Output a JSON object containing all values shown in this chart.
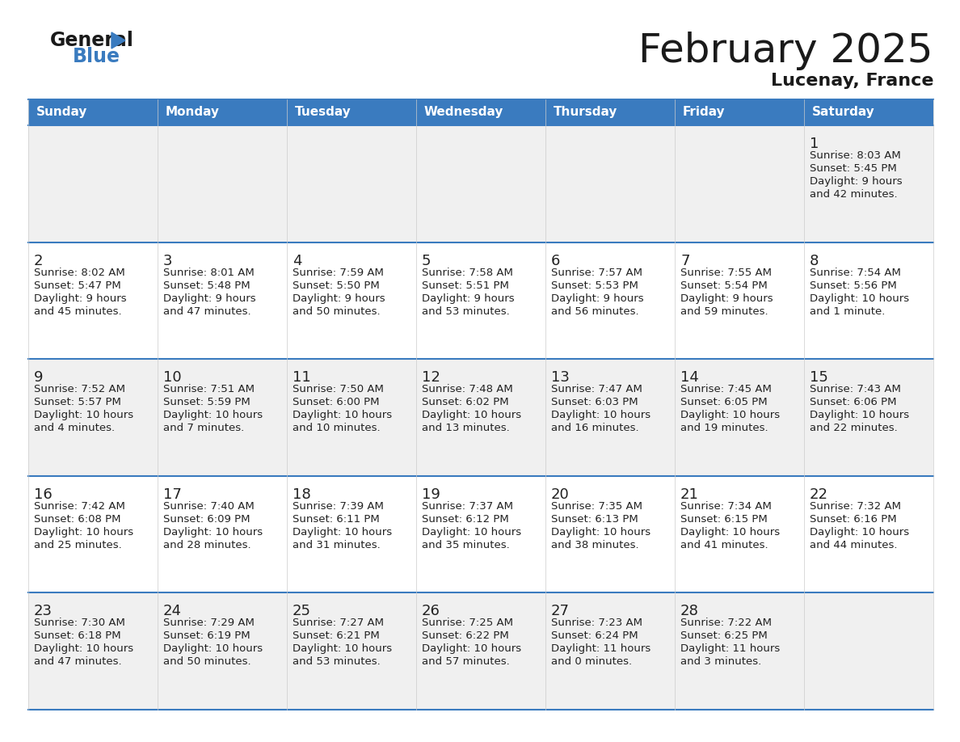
{
  "title": "February 2025",
  "subtitle": "Lucenay, France",
  "header_color": "#3a7bbf",
  "header_text_color": "#ffffff",
  "days_of_week": [
    "Sunday",
    "Monday",
    "Tuesday",
    "Wednesday",
    "Thursday",
    "Friday",
    "Saturday"
  ],
  "background_color": "#ffffff",
  "cell_bg_even": "#f0f0f0",
  "cell_bg_odd": "#ffffff",
  "border_color": "#3a7bbf",
  "border_color_light": "#3a7bbf",
  "day_number_color": "#222222",
  "info_text_color": "#222222",
  "logo_general_color": "#1a1a1a",
  "logo_blue_color": "#3a7bbf",
  "logo_triangle_color": "#3a7bbf",
  "calendar_data": [
    [
      null,
      null,
      null,
      null,
      null,
      null,
      {
        "day": "1",
        "sunrise": "8:03 AM",
        "sunset": "5:45 PM",
        "daylight": "9 hours",
        "daylight2": "and 42 minutes."
      }
    ],
    [
      {
        "day": "2",
        "sunrise": "8:02 AM",
        "sunset": "5:47 PM",
        "daylight": "9 hours",
        "daylight2": "and 45 minutes."
      },
      {
        "day": "3",
        "sunrise": "8:01 AM",
        "sunset": "5:48 PM",
        "daylight": "9 hours",
        "daylight2": "and 47 minutes."
      },
      {
        "day": "4",
        "sunrise": "7:59 AM",
        "sunset": "5:50 PM",
        "daylight": "9 hours",
        "daylight2": "and 50 minutes."
      },
      {
        "day": "5",
        "sunrise": "7:58 AM",
        "sunset": "5:51 PM",
        "daylight": "9 hours",
        "daylight2": "and 53 minutes."
      },
      {
        "day": "6",
        "sunrise": "7:57 AM",
        "sunset": "5:53 PM",
        "daylight": "9 hours",
        "daylight2": "and 56 minutes."
      },
      {
        "day": "7",
        "sunrise": "7:55 AM",
        "sunset": "5:54 PM",
        "daylight": "9 hours",
        "daylight2": "and 59 minutes."
      },
      {
        "day": "8",
        "sunrise": "7:54 AM",
        "sunset": "5:56 PM",
        "daylight": "10 hours",
        "daylight2": "and 1 minute."
      }
    ],
    [
      {
        "day": "9",
        "sunrise": "7:52 AM",
        "sunset": "5:57 PM",
        "daylight": "10 hours",
        "daylight2": "and 4 minutes."
      },
      {
        "day": "10",
        "sunrise": "7:51 AM",
        "sunset": "5:59 PM",
        "daylight": "10 hours",
        "daylight2": "and 7 minutes."
      },
      {
        "day": "11",
        "sunrise": "7:50 AM",
        "sunset": "6:00 PM",
        "daylight": "10 hours",
        "daylight2": "and 10 minutes."
      },
      {
        "day": "12",
        "sunrise": "7:48 AM",
        "sunset": "6:02 PM",
        "daylight": "10 hours",
        "daylight2": "and 13 minutes."
      },
      {
        "day": "13",
        "sunrise": "7:47 AM",
        "sunset": "6:03 PM",
        "daylight": "10 hours",
        "daylight2": "and 16 minutes."
      },
      {
        "day": "14",
        "sunrise": "7:45 AM",
        "sunset": "6:05 PM",
        "daylight": "10 hours",
        "daylight2": "and 19 minutes."
      },
      {
        "day": "15",
        "sunrise": "7:43 AM",
        "sunset": "6:06 PM",
        "daylight": "10 hours",
        "daylight2": "and 22 minutes."
      }
    ],
    [
      {
        "day": "16",
        "sunrise": "7:42 AM",
        "sunset": "6:08 PM",
        "daylight": "10 hours",
        "daylight2": "and 25 minutes."
      },
      {
        "day": "17",
        "sunrise": "7:40 AM",
        "sunset": "6:09 PM",
        "daylight": "10 hours",
        "daylight2": "and 28 minutes."
      },
      {
        "day": "18",
        "sunrise": "7:39 AM",
        "sunset": "6:11 PM",
        "daylight": "10 hours",
        "daylight2": "and 31 minutes."
      },
      {
        "day": "19",
        "sunrise": "7:37 AM",
        "sunset": "6:12 PM",
        "daylight": "10 hours",
        "daylight2": "and 35 minutes."
      },
      {
        "day": "20",
        "sunrise": "7:35 AM",
        "sunset": "6:13 PM",
        "daylight": "10 hours",
        "daylight2": "and 38 minutes."
      },
      {
        "day": "21",
        "sunrise": "7:34 AM",
        "sunset": "6:15 PM",
        "daylight": "10 hours",
        "daylight2": "and 41 minutes."
      },
      {
        "day": "22",
        "sunrise": "7:32 AM",
        "sunset": "6:16 PM",
        "daylight": "10 hours",
        "daylight2": "and 44 minutes."
      }
    ],
    [
      {
        "day": "23",
        "sunrise": "7:30 AM",
        "sunset": "6:18 PM",
        "daylight": "10 hours",
        "daylight2": "and 47 minutes."
      },
      {
        "day": "24",
        "sunrise": "7:29 AM",
        "sunset": "6:19 PM",
        "daylight": "10 hours",
        "daylight2": "and 50 minutes."
      },
      {
        "day": "25",
        "sunrise": "7:27 AM",
        "sunset": "6:21 PM",
        "daylight": "10 hours",
        "daylight2": "and 53 minutes."
      },
      {
        "day": "26",
        "sunrise": "7:25 AM",
        "sunset": "6:22 PM",
        "daylight": "10 hours",
        "daylight2": "and 57 minutes."
      },
      {
        "day": "27",
        "sunrise": "7:23 AM",
        "sunset": "6:24 PM",
        "daylight": "11 hours",
        "daylight2": "and 0 minutes."
      },
      {
        "day": "28",
        "sunrise": "7:22 AM",
        "sunset": "6:25 PM",
        "daylight": "11 hours",
        "daylight2": "and 3 minutes."
      },
      null
    ]
  ]
}
